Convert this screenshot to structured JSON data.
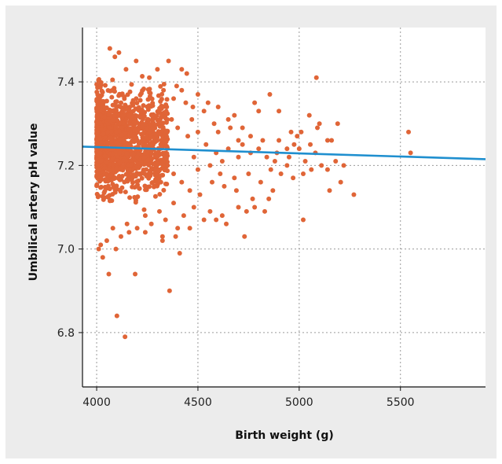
{
  "colors": {
    "frame_background": "#ececec",
    "plot_background": "#ffffff",
    "points": "#e06537",
    "regression_line": "#1f8fcf",
    "grid": "#9a9a9a"
  },
  "chart_data": {
    "type": "scatter",
    "title": "",
    "xlabel": "Birth weight (g)",
    "ylabel": "Umbilical artery pH value",
    "xlim": [
      3930,
      5920
    ],
    "ylim": [
      6.67,
      7.53
    ],
    "x_ticks": [
      4000,
      4500,
      5000,
      5500
    ],
    "x_tick_labels": [
      "4000",
      "4500",
      "5000",
      "5500"
    ],
    "y_ticks": [
      6.8,
      7.0,
      7.2,
      7.4
    ],
    "y_tick_labels": [
      "6.8",
      "7.0",
      "7.2",
      "7.4"
    ],
    "grid": "dotted, both axes",
    "legend": "none",
    "regression_line": {
      "x": [
        3930,
        5920
      ],
      "y": [
        7.245,
        7.215
      ]
    },
    "dense_cloud": {
      "description_range_x": [
        4000,
        4350
      ],
      "description_range_y": [
        7.08,
        7.43
      ],
      "approx_count": 1400
    },
    "series": [
      {
        "points": [
          [
            4110,
            7.47
          ],
          [
            4090,
            7.46
          ],
          [
            4065,
            7.48
          ],
          [
            4145,
            7.43
          ],
          [
            4195,
            7.45
          ],
          [
            4355,
            7.45
          ],
          [
            4300,
            7.43
          ],
          [
            4260,
            7.41
          ],
          [
            4420,
            7.43
          ],
          [
            4445,
            7.42
          ],
          [
            4395,
            7.39
          ],
          [
            4500,
            7.37
          ],
          [
            4550,
            7.35
          ],
          [
            4600,
            7.34
          ],
          [
            4680,
            7.32
          ],
          [
            4780,
            7.35
          ],
          [
            4800,
            7.33
          ],
          [
            4855,
            7.37
          ],
          [
            4720,
            7.29
          ],
          [
            4650,
            7.31
          ],
          [
            4900,
            7.33
          ],
          [
            4960,
            7.28
          ],
          [
            5050,
            7.32
          ],
          [
            5085,
            7.41
          ],
          [
            5100,
            7.3
          ],
          [
            5090,
            7.29
          ],
          [
            5190,
            7.3
          ],
          [
            5010,
            7.28
          ],
          [
            4990,
            7.27
          ],
          [
            5140,
            7.26
          ],
          [
            5160,
            7.26
          ],
          [
            5055,
            7.25
          ],
          [
            5000,
            7.24
          ],
          [
            4975,
            7.25
          ],
          [
            4940,
            7.24
          ],
          [
            4890,
            7.23
          ],
          [
            4840,
            7.22
          ],
          [
            4760,
            7.23
          ],
          [
            4700,
            7.22
          ],
          [
            4620,
            7.21
          ],
          [
            4560,
            7.2
          ],
          [
            4500,
            7.19
          ],
          [
            4610,
            7.18
          ],
          [
            4680,
            7.17
          ],
          [
            4750,
            7.18
          ],
          [
            4860,
            7.19
          ],
          [
            4910,
            7.18
          ],
          [
            4970,
            7.17
          ],
          [
            5020,
            7.18
          ],
          [
            5110,
            7.2
          ],
          [
            5140,
            7.19
          ],
          [
            5180,
            7.21
          ],
          [
            5220,
            7.2
          ],
          [
            5205,
            7.16
          ],
          [
            5150,
            7.14
          ],
          [
            5060,
            7.19
          ],
          [
            4940,
            7.2
          ],
          [
            4810,
            7.16
          ],
          [
            4770,
            7.12
          ],
          [
            4700,
            7.1
          ],
          [
            4620,
            7.08
          ],
          [
            4560,
            7.09
          ],
          [
            4480,
            7.1
          ],
          [
            4430,
            7.08
          ],
          [
            4380,
            7.11
          ],
          [
            4340,
            7.07
          ],
          [
            4310,
            7.09
          ],
          [
            4270,
            7.06
          ],
          [
            4240,
            7.08
          ],
          [
            4200,
            7.05
          ],
          [
            4160,
            7.04
          ],
          [
            4120,
            7.03
          ],
          [
            4080,
            7.05
          ],
          [
            4050,
            7.02
          ],
          [
            4020,
            7.01
          ],
          [
            4010,
            7.0
          ],
          [
            4030,
            6.98
          ],
          [
            4060,
            6.94
          ],
          [
            4095,
            7.0
          ],
          [
            4190,
            6.94
          ],
          [
            4100,
            6.84
          ],
          [
            4140,
            6.79
          ],
          [
            4360,
            6.9
          ],
          [
            4410,
            6.99
          ],
          [
            4400,
            7.05
          ],
          [
            4460,
            7.05
          ],
          [
            4530,
            7.07
          ],
          [
            4590,
            7.07
          ],
          [
            4640,
            7.06
          ],
          [
            4740,
            7.09
          ],
          [
            4780,
            7.1
          ],
          [
            4830,
            7.09
          ],
          [
            5020,
            7.07
          ],
          [
            5270,
            7.13
          ],
          [
            4730,
            7.03
          ],
          [
            4325,
            7.02
          ],
          [
            4325,
            7.03
          ],
          [
            4240,
            7.04
          ],
          [
            4390,
            7.03
          ],
          [
            4150,
            7.06
          ],
          [
            5540,
            7.28
          ],
          [
            5550,
            7.23
          ],
          [
            4880,
            7.21
          ],
          [
            4820,
            7.26
          ],
          [
            4760,
            7.27
          ],
          [
            4700,
            7.26
          ],
          [
            4650,
            7.24
          ],
          [
            4590,
            7.23
          ],
          [
            4540,
            7.25
          ],
          [
            4480,
            7.22
          ],
          [
            4450,
            7.27
          ],
          [
            4400,
            7.29
          ],
          [
            4370,
            7.31
          ],
          [
            4470,
            7.31
          ],
          [
            4530,
            7.33
          ],
          [
            4580,
            7.3
          ],
          [
            4600,
            7.28
          ],
          [
            4660,
            7.29
          ],
          [
            4720,
            7.25
          ],
          [
            4800,
            7.24
          ],
          [
            4900,
            7.26
          ],
          [
            4950,
            7.22
          ],
          [
            5030,
            7.21
          ],
          [
            5080,
            7.23
          ],
          [
            4870,
            7.14
          ],
          [
            4850,
            7.12
          ],
          [
            4690,
            7.14
          ],
          [
            4630,
            7.15
          ],
          [
            4570,
            7.16
          ],
          [
            4510,
            7.13
          ],
          [
            4460,
            7.14
          ],
          [
            4420,
            7.16
          ],
          [
            4380,
            7.18
          ],
          [
            4350,
            7.2
          ],
          [
            4500,
            7.28
          ],
          [
            4440,
            7.35
          ],
          [
            4380,
            7.36
          ],
          [
            4330,
            7.38
          ],
          [
            4420,
            7.38
          ],
          [
            4475,
            7.34
          ]
        ]
      }
    ]
  }
}
